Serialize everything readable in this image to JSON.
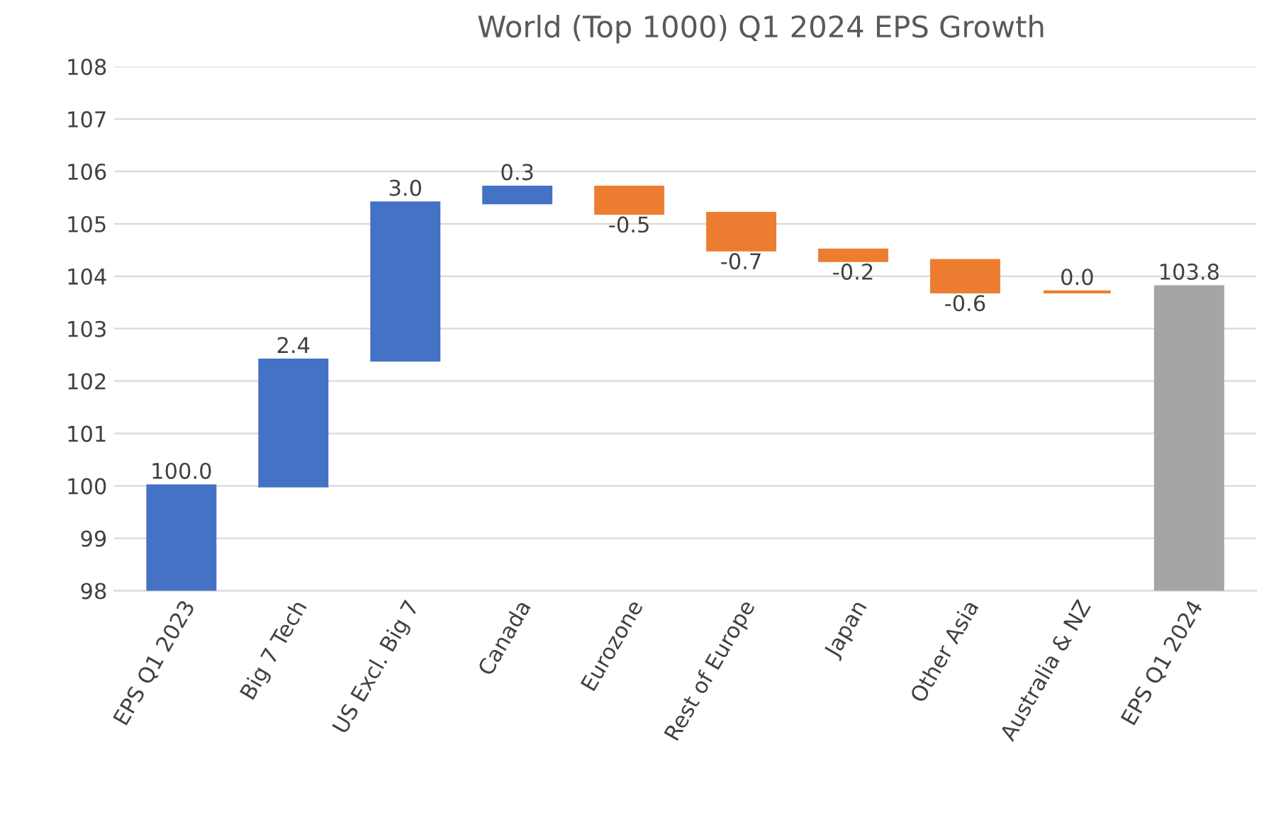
{
  "chart_data": {
    "type": "bar",
    "title": "World (Top 1000) Q1 2024 EPS Growth",
    "categories": [
      "EPS Q1 2023",
      "Big 7 Tech",
      "US Excl. Big 7",
      "Canada",
      "Eurozone",
      "Rest of Europe",
      "Japan",
      "Other Asia",
      "Australia & NZ",
      "EPS Q1 2024"
    ],
    "values": [
      100.0,
      2.4,
      3.0,
      0.3,
      -0.5,
      -0.7,
      -0.2,
      -0.6,
      0.0,
      103.8
    ],
    "base": [
      0,
      100.0,
      102.4,
      105.4,
      105.7,
      105.2,
      104.5,
      104.3,
      103.7,
      0
    ],
    "colors": [
      "#4472c4",
      "#4472c4",
      "#4472c4",
      "#4472c4",
      "#ed7d31",
      "#ed7d31",
      "#ed7d31",
      "#ed7d31",
      "#ed7d31",
      "#a5a5a5"
    ],
    "value_labels": [
      "100.0",
      "2.4",
      "3.0",
      "0.3",
      "-0.5",
      "-0.7",
      "-0.2",
      "-0.6",
      "0.0",
      "103.8"
    ],
    "ylim": [
      98,
      108
    ],
    "yticks": [
      98,
      99,
      100,
      101,
      102,
      103,
      104,
      105,
      106,
      107,
      108
    ],
    "grid": "y"
  }
}
